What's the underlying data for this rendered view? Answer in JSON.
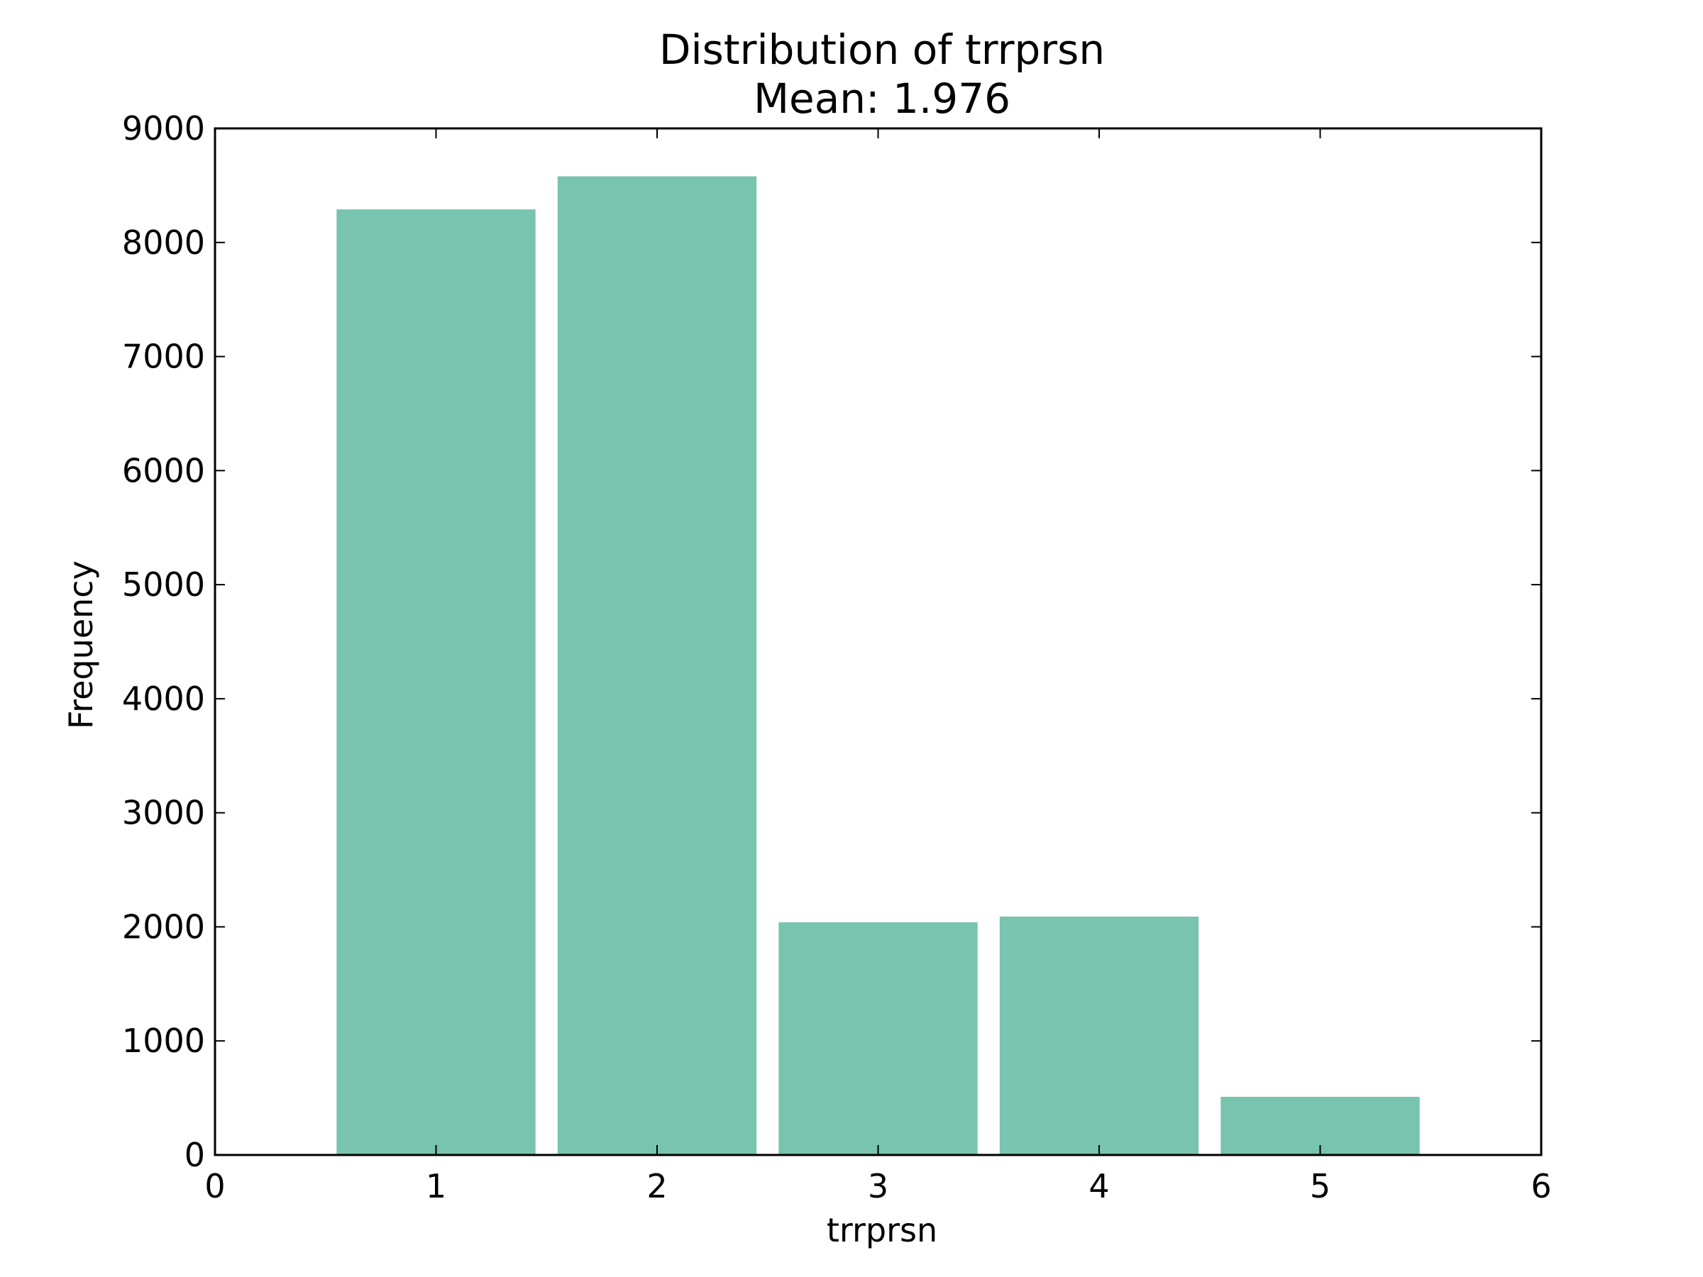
{
  "chart_data": {
    "type": "bar",
    "title": "Distribution of trrprsn",
    "subtitle": "Mean: 1.976",
    "xlabel": "trrprsn",
    "ylabel": "Frequency",
    "x": [
      1,
      2,
      3,
      4,
      5
    ],
    "values": [
      8290,
      8580,
      2040,
      2090,
      510
    ],
    "bar_width": 0.9,
    "xlim": [
      0,
      6
    ],
    "ylim": [
      0,
      9000
    ],
    "xticks": [
      0,
      1,
      2,
      3,
      4,
      5,
      6
    ],
    "yticks": [
      0,
      1000,
      2000,
      3000,
      4000,
      5000,
      6000,
      7000,
      8000,
      9000
    ],
    "xtick_labels": [
      "0",
      "1",
      "2",
      "3",
      "4",
      "5",
      "6"
    ],
    "ytick_labels": [
      "0",
      "1000",
      "2000",
      "3000",
      "4000",
      "5000",
      "6000",
      "7000",
      "8000",
      "9000"
    ],
    "grid": false,
    "legend": "none",
    "bar_color": "#78c4ae",
    "axis_color": "#000000"
  }
}
